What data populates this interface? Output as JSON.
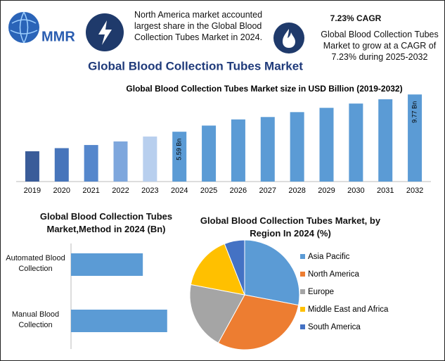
{
  "header": {
    "logo": "MMR",
    "highlight_1": "North America market accounted largest share in the Global Blood Collection Tubes Market in 2024.",
    "highlight_2_title": "7.23% CAGR",
    "highlight_2": "Global Blood Collection Tubes Market to grow at a CAGR of 7.23% during 2025-2032",
    "title": "Global Blood Collection Tubes Market"
  },
  "chart_data": [
    {
      "type": "bar",
      "title": "Global Blood Collection Tubes Market size in USD Billion (2019-2032)",
      "categories": [
        "2019",
        "2020",
        "2021",
        "2022",
        "2023",
        "2024",
        "2025",
        "2026",
        "2027",
        "2028",
        "2029",
        "2030",
        "2031",
        "2032"
      ],
      "values": [
        3.4,
        3.75,
        4.1,
        4.5,
        5.05,
        5.59,
        6.28,
        6.97,
        7.24,
        7.79,
        8.27,
        8.75,
        9.23,
        9.77
      ],
      "value_labels": [
        null,
        null,
        null,
        null,
        null,
        "5.59 Bn",
        null,
        null,
        null,
        null,
        null,
        null,
        null,
        "9.77 Bn"
      ],
      "colors": [
        "#3a5c99",
        "#4775bb",
        "#5587cc",
        "#7ea7dd",
        "#b8cfee",
        "#5b9bd5",
        "#5b9bd5",
        "#5b9bd5",
        "#5b9bd5",
        "#5b9bd5",
        "#5b9bd5",
        "#5b9bd5",
        "#5b9bd5",
        "#5b9bd5"
      ],
      "ylim": [
        0,
        10.5
      ]
    },
    {
      "type": "bar",
      "orientation": "horizontal",
      "title": "Global Blood Collection Tubes Market,Method in 2024 (Bn)",
      "categories": [
        "Automated Blood Collection",
        "Manual Blood Collection"
      ],
      "values": [
        2.39,
        3.2
      ],
      "color": "#5b9bd5",
      "xlim": [
        0,
        4
      ]
    },
    {
      "type": "pie",
      "title": "Global Blood Collection Tubes Market, by Region In 2024 (%)",
      "categories": [
        "Asia Pacific",
        "North America",
        "Europe",
        "Middle East and Africa",
        "South America"
      ],
      "values": [
        28,
        30,
        20,
        16,
        6
      ],
      "colors": [
        "#5b9bd5",
        "#ed7d31",
        "#a5a5a5",
        "#ffc000",
        "#4472c4"
      ],
      "legend": "right"
    }
  ]
}
